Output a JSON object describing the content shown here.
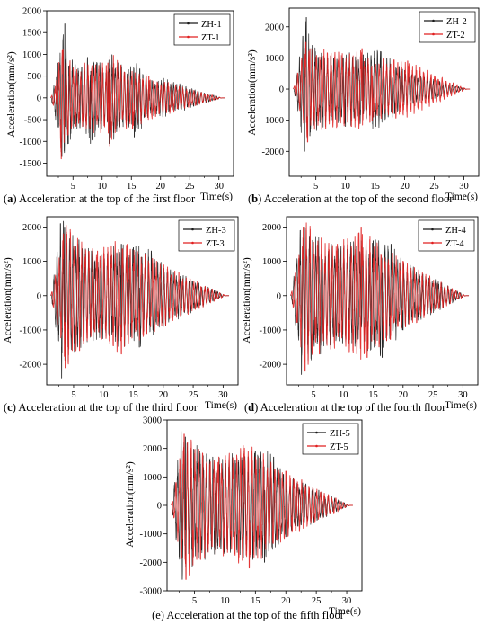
{
  "chart_data": [
    {
      "type": "line",
      "panel": "a",
      "caption_letter": "(a)",
      "caption_text": "Acceleration at the top of the first floor",
      "xlabel": "Time(s)",
      "ylabel": "Acceleration(mm/s²)",
      "xlim": [
        0.5,
        32.5
      ],
      "ylim": [
        -1800,
        2000
      ],
      "xticks": [
        5,
        10,
        15,
        20,
        25,
        30
      ],
      "yticks": [
        -1500,
        -1000,
        -500,
        0,
        500,
        1000,
        1500,
        2000
      ],
      "legend_position": "top-right",
      "series": [
        {
          "name": "ZH-1",
          "color": "#1a1a1a",
          "peak_points": [
            [
              2.4,
              800
            ],
            [
              3.1,
              -1350
            ],
            [
              3.6,
              1700
            ],
            [
              4.2,
              -1050
            ],
            [
              6.5,
              700
            ],
            [
              8.0,
              -1050
            ],
            [
              11.0,
              600
            ],
            [
              11.2,
              -1050
            ],
            [
              14.5,
              650
            ],
            [
              15.5,
              -900
            ],
            [
              18.5,
              400
            ],
            [
              20.5,
              450
            ],
            [
              30.5,
              0
            ]
          ]
        },
        {
          "name": "ZT-1",
          "color": "#e02020",
          "peak_points": [
            [
              2.2,
              400
            ],
            [
              3.0,
              -1400
            ],
            [
              3.3,
              1100
            ],
            [
              5.5,
              -650
            ],
            [
              7.0,
              800
            ],
            [
              11.0,
              800
            ],
            [
              11.3,
              -1100
            ],
            [
              13.2,
              750
            ],
            [
              15.2,
              -700
            ],
            [
              18.0,
              500
            ],
            [
              30.5,
              0
            ]
          ]
        }
      ]
    },
    {
      "type": "line",
      "panel": "b",
      "caption_letter": "(b)",
      "caption_text": "Acceleration at the top of the second floor",
      "xlabel": "Time(s)",
      "ylabel": "Acceleration(mm/s²)",
      "xlim": [
        0.5,
        32.5
      ],
      "ylim": [
        -2800,
        2600
      ],
      "xticks": [
        5,
        10,
        15,
        20,
        25,
        30
      ],
      "yticks": [
        -2000,
        -1000,
        0,
        1000,
        2000
      ],
      "legend_position": "top-right",
      "series": [
        {
          "name": "ZH-2",
          "color": "#1a1a1a",
          "peak_points": [
            [
              2.8,
              1700
            ],
            [
              3.1,
              -2000
            ],
            [
              3.4,
              2300
            ],
            [
              4.0,
              -1500
            ],
            [
              8.0,
              1000
            ],
            [
              10.0,
              -1200
            ],
            [
              13.0,
              1100
            ],
            [
              15.0,
              -1300
            ],
            [
              16.0,
              1200
            ],
            [
              18.0,
              -900
            ],
            [
              20.0,
              600
            ],
            [
              30.5,
              0
            ]
          ]
        },
        {
          "name": "ZT-2",
          "color": "#e02020",
          "peak_points": [
            [
              3.3,
              1500
            ],
            [
              3.6,
              -1700
            ],
            [
              4.0,
              1300
            ],
            [
              6.0,
              -1300
            ],
            [
              11.0,
              -1200
            ],
            [
              12.8,
              1300
            ],
            [
              14.5,
              -1000
            ],
            [
              20.5,
              900
            ],
            [
              30.5,
              0
            ]
          ]
        }
      ]
    },
    {
      "type": "line",
      "panel": "c",
      "caption_letter": "(c)",
      "caption_text": "Acceleration at the top of the third floor",
      "xlabel": "Time(s)",
      "ylabel": "Acceleration(mm/s²)",
      "xlim": [
        0.5,
        32.5
      ],
      "ylim": [
        -2600,
        2300
      ],
      "xticks": [
        5,
        10,
        15,
        20,
        25,
        30
      ],
      "yticks": [
        -2000,
        -1000,
        0,
        1000,
        2000
      ],
      "legend_position": "top-right",
      "series": [
        {
          "name": "ZH-3",
          "color": "#1a1a1a",
          "peak_points": [
            [
              2.8,
              2100
            ],
            [
              3.0,
              -2400
            ],
            [
              3.5,
              2000
            ],
            [
              8.0,
              1300
            ],
            [
              13.0,
              1500
            ],
            [
              15.0,
              1400
            ],
            [
              16.0,
              -1500
            ],
            [
              18.0,
              1300
            ],
            [
              20.0,
              -900
            ],
            [
              30.5,
              0
            ]
          ]
        },
        {
          "name": "ZT-3",
          "color": "#e02020",
          "peak_points": [
            [
              3.3,
              1800
            ],
            [
              3.6,
              -2100
            ],
            [
              6.0,
              -1600
            ],
            [
              9.0,
              1300
            ],
            [
              13.0,
              -1700
            ],
            [
              14.0,
              1500
            ],
            [
              20.0,
              900
            ],
            [
              30.5,
              0
            ]
          ]
        }
      ]
    },
    {
      "type": "line",
      "panel": "d",
      "caption_letter": "(d)",
      "caption_text": "Acceleration at the top of the fourth floor",
      "xlabel": "Time(s)",
      "ylabel": "Acceleration(mm/s²)",
      "xlim": [
        0.5,
        32.5
      ],
      "ylim": [
        -2600,
        2300
      ],
      "xticks": [
        5,
        10,
        15,
        20,
        25,
        30
      ],
      "yticks": [
        -2000,
        -1000,
        0,
        1000,
        2000
      ],
      "legend_position": "top-right",
      "series": [
        {
          "name": "ZH-4",
          "color": "#1a1a1a",
          "peak_points": [
            [
              2.8,
              1900
            ],
            [
              3.0,
              -2300
            ],
            [
              3.5,
              2000
            ],
            [
              8.0,
              1500
            ],
            [
              13.0,
              1600
            ],
            [
              15.0,
              1600
            ],
            [
              16.5,
              -1800
            ],
            [
              18.0,
              1500
            ],
            [
              20.0,
              -1000
            ],
            [
              30.5,
              0
            ]
          ]
        },
        {
          "name": "ZT-4",
          "color": "#e02020",
          "peak_points": [
            [
              3.3,
              2000
            ],
            [
              3.6,
              -2200
            ],
            [
              6.0,
              -1700
            ],
            [
              9.0,
              1500
            ],
            [
              13.0,
              2000
            ],
            [
              14.0,
              -1800
            ],
            [
              20.0,
              1000
            ],
            [
              30.5,
              0
            ]
          ]
        }
      ]
    },
    {
      "type": "line",
      "panel": "e",
      "caption_letter": "",
      "caption_text": "(e) Acceleration at the top of the fifth floor",
      "xlabel": "Time(s)",
      "ylabel": "Acceleration(mm/s²)",
      "xlim": [
        0.5,
        32.5
      ],
      "ylim": [
        -3000,
        3000
      ],
      "xticks": [
        5,
        10,
        15,
        20,
        25,
        30
      ],
      "yticks": [
        -3000,
        -2000,
        -1000,
        0,
        1000,
        2000,
        3000
      ],
      "legend_position": "top-right",
      "series": [
        {
          "name": "ZH-5",
          "color": "#1a1a1a",
          "peak_points": [
            [
              2.8,
              2600
            ],
            [
              3.0,
              -2600
            ],
            [
              3.5,
              2400
            ],
            [
              8.0,
              1700
            ],
            [
              13.0,
              1900
            ],
            [
              15.0,
              1900
            ],
            [
              16.5,
              -2000
            ],
            [
              18.0,
              1700
            ],
            [
              20.0,
              -1100
            ],
            [
              30.5,
              0
            ]
          ]
        },
        {
          "name": "ZT-5",
          "color": "#e02020",
          "peak_points": [
            [
              3.3,
              2500
            ],
            [
              3.6,
              -2600
            ],
            [
              6.0,
              -1900
            ],
            [
              9.0,
              1700
            ],
            [
              13.0,
              2100
            ],
            [
              14.0,
              -2200
            ],
            [
              20.0,
              1200
            ],
            [
              30.5,
              0
            ]
          ]
        }
      ]
    }
  ]
}
